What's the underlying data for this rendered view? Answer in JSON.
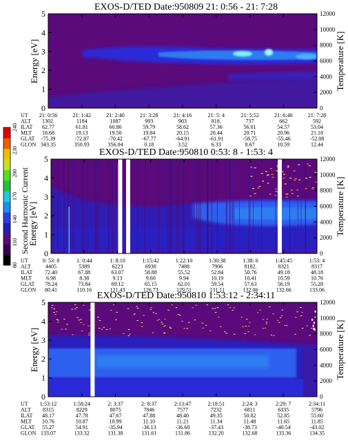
{
  "colors": {
    "background_dark": "#5a0a7a",
    "spectrum_mid": "#2a2ad8",
    "spectrum_bright": "#2d7df0",
    "spectrum_peak": "#7ff0ff",
    "gap": "#ffffff"
  },
  "colorbar": {
    "label": "Second Harmonic Current",
    "ticks": [
      "80",
      "110",
      "140",
      "170",
      "200",
      "230",
      "240"
    ],
    "colors": [
      "#000000",
      "#3a0050",
      "#5a0a7a",
      "#2020b8",
      "#2a40e0",
      "#1a90f0",
      "#22c8d8",
      "#20c040",
      "#50e020",
      "#c8e020",
      "#f0c000",
      "#f06000",
      "#e00000"
    ]
  },
  "chart_data": [
    {
      "type": "heatmap",
      "title": "EXOS-D/TED   Date:950809  21: 0:56 - 21: 7:28",
      "ylabel": "Energy [eV]",
      "ylabel_right": "Temperature [K]",
      "ylim": [
        0,
        5
      ],
      "ylim_right": [
        0,
        12000
      ],
      "yticks": [
        "0",
        "1",
        "2",
        "3",
        "4",
        "5"
      ],
      "yticks_right": [
        "0",
        "2000",
        "4000",
        "6000",
        "8000",
        "10000",
        "12000"
      ],
      "footer_labels": [
        "UT",
        "ALT",
        "ILAT",
        "MLT",
        "GLAT",
        "GLON"
      ],
      "footer_columns": [
        [
          "21: 0:56",
          "1302.",
          "62.77",
          "18.68",
          "-75.39",
          "343.35"
        ],
        [
          "21: 1:42",
          "1184",
          "61.81",
          "19.13",
          "-72.87",
          "350.93"
        ],
        [
          "21: 2:40",
          "1087",
          "60.86",
          "19.50",
          "-70.42",
          "356.04"
        ],
        [
          "21: 3:28",
          "993",
          "59.79",
          "19.84",
          "-67.77",
          "0.18"
        ],
        [
          "21: 4:16",
          "903",
          "58.62",
          "20.15",
          "-64.91",
          "3.52"
        ],
        [
          "21: 5: 4",
          "818.",
          "57.36",
          "20.44",
          "-61.91",
          "6.33"
        ],
        [
          "21: 5:52",
          "737",
          "56.01",
          "20.71",
          "-58.75",
          "8.67"
        ],
        [
          "21: 6:40",
          "662",
          "54.57",
          "20.96",
          "-55.46",
          "10.59"
        ],
        [
          "21: 7:28",
          "592",
          "53.04",
          "21.18",
          "-52.08",
          "12.44"
        ]
      ],
      "gaps": []
    },
    {
      "type": "heatmap",
      "title": "EXOS-D/TED   Date:950810  0:53: 8 - 1:53: 4",
      "ylabel": "Energy [eV]",
      "ylabel_right": "Temperature [K]",
      "ylim": [
        0,
        5
      ],
      "ylim_right": [
        0,
        12000
      ],
      "yticks": [
        "0",
        "1",
        "2",
        "3",
        "4",
        "5"
      ],
      "yticks_right": [
        "0",
        "2000",
        "4000",
        "6000",
        "8000",
        "10000",
        "12000"
      ],
      "footer_labels": [
        "UT",
        "ALT",
        "ILAT",
        "MLT",
        "GLAT",
        "GLON"
      ],
      "footer_columns": [
        [
          "0: 53: 8",
          "4405",
          "72.40",
          "6.98",
          "78.24",
          "80.41"
        ],
        [
          "1: 0:44",
          "5389",
          "67.88",
          "8.38",
          "73.84",
          "110.16"
        ],
        [
          "1: 8:10",
          "6223",
          "63.07",
          "9.13",
          "69.12",
          "121.43"
        ],
        [
          "1:15:42",
          "6930",
          "58.88",
          "9.60",
          "65.15",
          "126.73"
        ],
        [
          "1:22:10",
          "7488",
          "55.52",
          "9.94",
          "62.01",
          "129.51"
        ],
        [
          "1:30:38",
          "7906",
          "52.84",
          "10.19",
          "59.54",
          "131.11"
        ],
        [
          "1:38: 6",
          "8182.",
          "50.76",
          "10.41",
          "57.63",
          "132.06"
        ],
        [
          "1:45:45",
          "8321",
          "49.18",
          "10.59",
          "56.19",
          "132.66"
        ],
        [
          "1:53: 4",
          "8317",
          "48.18",
          "10.76",
          "55.28",
          "133.06"
        ]
      ],
      "gaps": [
        0.26,
        0.29,
        0.86
      ]
    },
    {
      "type": "heatmap",
      "title": "EXOS-D/TED   Date:950810  1:53:12 - 2:34:11",
      "ylabel": "Energy [eV]",
      "ylabel_right": "Temperature [K]",
      "ylim": [
        0,
        5
      ],
      "ylim_right": [
        0,
        12000
      ],
      "yticks": [
        "0",
        "1",
        "2",
        "3",
        "4",
        "5"
      ],
      "yticks_right": [
        "0",
        "2000",
        "4000",
        "6000",
        "8000",
        "10000",
        "12000"
      ],
      "footer_labels": [
        "UT",
        "ALT",
        "ILAT",
        "MLT",
        "GLAT",
        "GLON"
      ],
      "footer_columns": [
        [
          "1:53:12",
          "8315",
          "48.17",
          "10.76",
          "55.27",
          "133.07"
        ],
        [
          "1:58:24",
          "8229",
          "47.78",
          "10.87",
          "54.91",
          "133.32"
        ],
        [
          "2: 3:37",
          "8075",
          "47.67",
          "10.99",
          "-35.94",
          "131.38"
        ],
        [
          "2: 8:37",
          "7846",
          "47.88",
          "11.10",
          "-36.13",
          "131.61"
        ],
        [
          "2:13:47",
          "7577",
          "48.40",
          "11.21",
          "-36.60",
          "131.86"
        ],
        [
          "2:18:51",
          "7232",
          "49.35",
          "11.34",
          "-37.43",
          "132.20"
        ],
        [
          "2:24: 3",
          "6811",
          "50.82",
          "11.48",
          "-38.73",
          "132.68"
        ],
        [
          "2:29: 7",
          "6335",
          "52.85",
          "11.65",
          "-40.54",
          "133.36"
        ],
        [
          "2:34:11",
          "5796",
          "55.60",
          "11.85",
          "-43.02",
          "134.35"
        ]
      ],
      "gaps": [
        0.165
      ]
    }
  ]
}
